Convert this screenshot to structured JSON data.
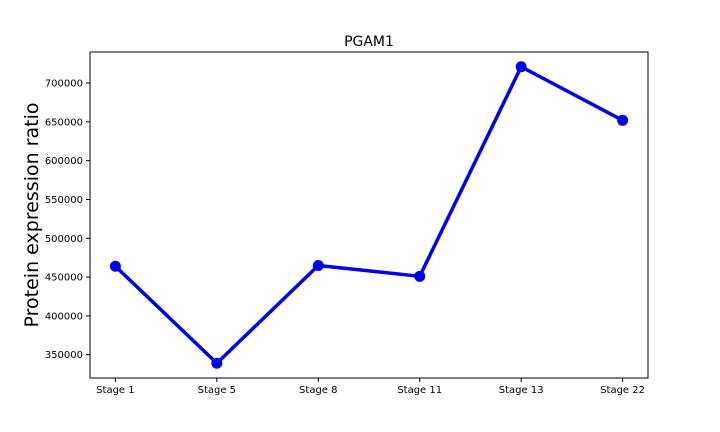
{
  "chart_data": {
    "type": "line",
    "title": "PGAM1",
    "xlabel": "",
    "ylabel": "Protein expression ratio",
    "categories": [
      "Stage 1",
      "Stage 5",
      "Stage 8",
      "Stage 11",
      "Stage 13",
      "Stage 22"
    ],
    "series": [
      {
        "values": [
          464000,
          339000,
          465000,
          451000,
          721000,
          652000
        ]
      }
    ],
    "ylim": [
      320000,
      740000
    ],
    "yticks": [
      {
        "value": 350000,
        "label": "350000"
      },
      {
        "value": 400000,
        "label": "400000"
      },
      {
        "value": 450000,
        "label": "450000"
      },
      {
        "value": 500000,
        "label": "500000"
      },
      {
        "value": 550000,
        "label": "550000"
      },
      {
        "value": 600000,
        "label": "600000"
      },
      {
        "value": 650000,
        "label": "650000"
      },
      {
        "value": 700000,
        "label": "700000"
      }
    ],
    "grid": false,
    "line_color": "#0000ee",
    "marker_color": "#0000ee"
  }
}
